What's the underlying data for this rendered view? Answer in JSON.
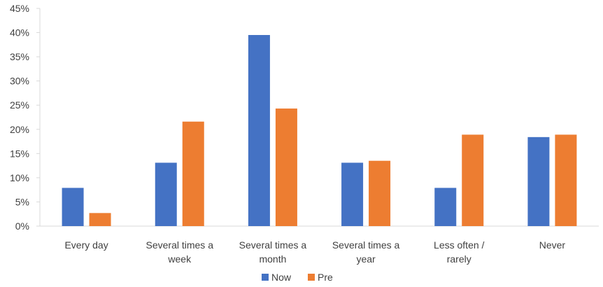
{
  "chart_data": {
    "type": "bar",
    "categories": [
      [
        "Every day"
      ],
      [
        "Several times a",
        "week"
      ],
      [
        "Several times a",
        "month"
      ],
      [
        "Several times a",
        "year"
      ],
      [
        "Less often /",
        "rarely"
      ],
      [
        "Never"
      ]
    ],
    "series": [
      {
        "name": "Now",
        "color": "#4472C4",
        "values": [
          7.9,
          13.1,
          39.5,
          13.1,
          7.9,
          18.4
        ]
      },
      {
        "name": "Pre",
        "color": "#ED7D31",
        "values": [
          2.7,
          21.6,
          24.3,
          13.5,
          18.9,
          18.9
        ]
      }
    ],
    "ylim": [
      0,
      45
    ],
    "yticks": [
      0,
      5,
      10,
      15,
      20,
      25,
      30,
      35,
      40,
      45
    ],
    "ytick_labels": [
      "0%",
      "5%",
      "10%",
      "15%",
      "20%",
      "25%",
      "30%",
      "35%",
      "40%",
      "45%"
    ],
    "grid": false,
    "legend_position": "bottom-center"
  }
}
